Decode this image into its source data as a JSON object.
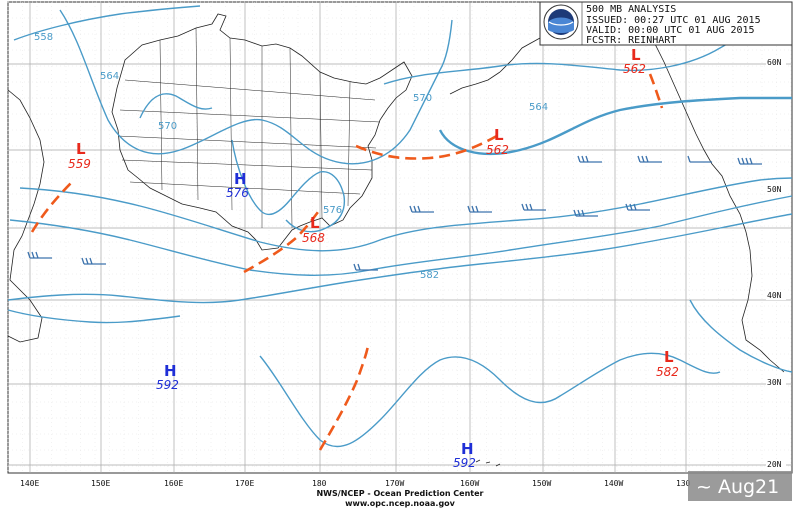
{
  "header": {
    "title": "500 MB ANALYSIS",
    "issued": "ISSUED: 00:27 UTC 01 AUG 2015",
    "valid": "VALID:  00:00 UTC 01 AUG 2015",
    "forecaster": "FCSTR: REINHART"
  },
  "footer": {
    "center": "NWS/NCEP - Ocean Prediction Center",
    "url": "www.opc.ncep.noaa.gov"
  },
  "watermark": "~ Aug21",
  "longitude_labels": [
    "140E",
    "150E",
    "160E",
    "170E",
    "180",
    "170W",
    "160W",
    "150W",
    "140W",
    "130"
  ],
  "latitude_labels": [
    "60N",
    "50N",
    "40N",
    "30N",
    "20N"
  ],
  "contour_labels": [
    "558",
    "564",
    "570",
    "576",
    "570",
    "564",
    "582"
  ],
  "pressure_centers": [
    {
      "type": "L",
      "value": "559",
      "color": "#e8291c"
    },
    {
      "type": "L",
      "value": "562",
      "color": "#e8291c"
    },
    {
      "type": "L",
      "value": "562",
      "color": "#e8291c"
    },
    {
      "type": "L",
      "value": "568",
      "color": "#e8291c"
    },
    {
      "type": "L",
      "value": "582",
      "color": "#e8291c"
    },
    {
      "type": "H",
      "value": "576",
      "color": "#1f2fd6"
    },
    {
      "type": "H",
      "value": "592",
      "color": "#1f2fd6"
    },
    {
      "type": "H",
      "value": "592",
      "color": "#1f2fd6"
    }
  ],
  "colors": {
    "contour": "#4a9bc8",
    "trough": "#ef5a1c",
    "low": "#e8291c",
    "high": "#1f2fd6",
    "barb": "#3d73ad"
  },
  "icons": {
    "logo": "noaa-logo"
  }
}
